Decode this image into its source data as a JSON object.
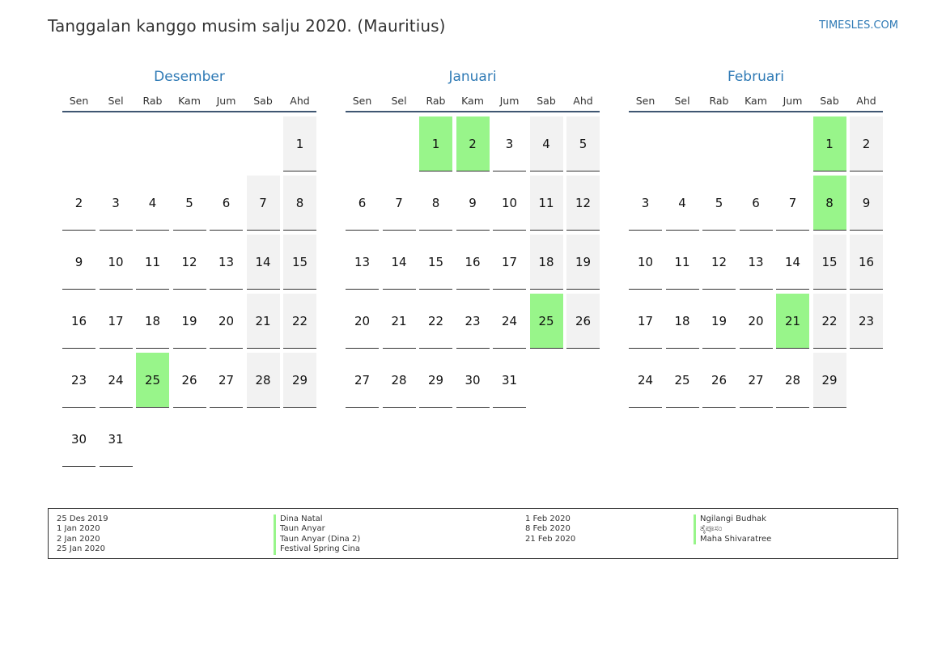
{
  "header": {
    "title": "Tanggalan kanggo musim salju 2020. (Mauritius)",
    "site": "TIMESLES.COM"
  },
  "weekdays": [
    "Sen",
    "Sel",
    "Rab",
    "Kam",
    "Jum",
    "Sab",
    "Ahd"
  ],
  "months": [
    {
      "name": "Desember",
      "start_weekday": 6,
      "days": 31,
      "holidays": [
        25
      ]
    },
    {
      "name": "Januari",
      "start_weekday": 2,
      "days": 31,
      "holidays": [
        1,
        2,
        25
      ]
    },
    {
      "name": "Februari",
      "start_weekday": 5,
      "days": 29,
      "holidays": [
        1,
        8,
        21
      ]
    }
  ],
  "colors": {
    "holiday": "#98f58a",
    "weekend": "#f2f2f2",
    "accent": "#2f7ab5"
  },
  "legend": {
    "left_dates": [
      "25 Des 2019",
      "1 Jan 2020",
      "2 Jan 2020",
      "25 Jan 2020"
    ],
    "left_names": [
      "Dina Natal",
      "Taun Anyar",
      "Taun Anyar (Dina 2)",
      "Festival Spring Cina"
    ],
    "right_dates": [
      "1 Feb 2020",
      "8 Feb 2020",
      "21 Feb 2020"
    ],
    "right_names": [
      "Ngilangi Budhak",
      "ತೈಪೂಸಂ",
      "Maha Shivaratree"
    ]
  }
}
